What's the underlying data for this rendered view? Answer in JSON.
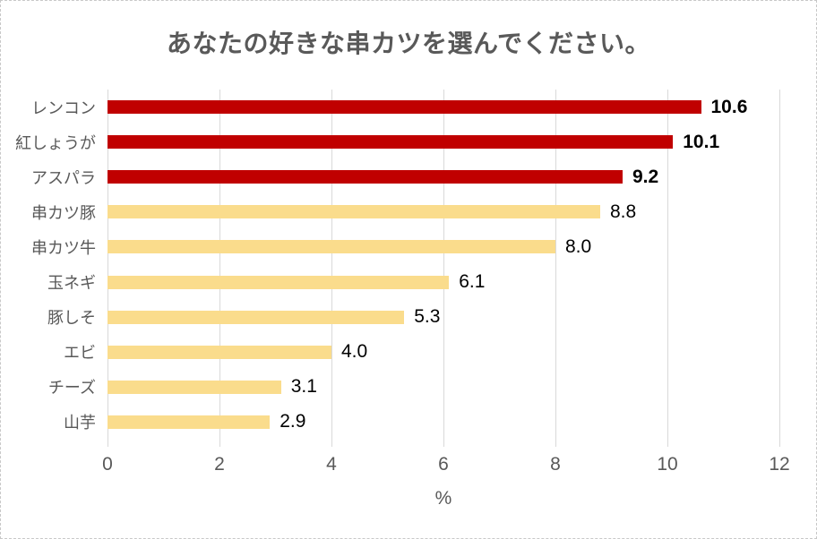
{
  "chart_data": {
    "type": "bar",
    "orientation": "horizontal",
    "title": "あなたの好きな串カツを選んでください。",
    "xlabel": "%",
    "xlim": [
      0,
      12
    ],
    "xticks": [
      0,
      2,
      4,
      6,
      8,
      10,
      12
    ],
    "grid": true,
    "legend": false,
    "categories": [
      "レンコン",
      "紅しょうが",
      "アスパラ",
      "串カツ豚",
      "串カツ牛",
      "玉ネギ",
      "豚しそ",
      "エビ",
      "チーズ",
      "山芋"
    ],
    "values": [
      10.6,
      10.1,
      9.2,
      8.8,
      8.0,
      6.1,
      5.3,
      4.0,
      3.1,
      2.9
    ],
    "value_labels": [
      "10.6",
      "10.1",
      "9.2",
      "8.8",
      "8.0",
      "6.1",
      "5.3",
      "4.0",
      "3.1",
      "2.9"
    ],
    "highlight_count": 3,
    "colors": {
      "highlight_bar": "#c00000",
      "normal_bar": "#fadc8c",
      "title_text": "#595959",
      "axis_text": "#595959",
      "value_text": "#000000",
      "gridline": "#d9d9d9",
      "chart_border": "#c8c8c8",
      "background": "#ffffff"
    }
  }
}
